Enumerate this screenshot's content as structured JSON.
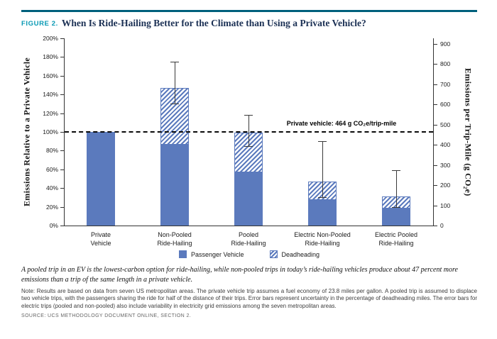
{
  "figure": {
    "label": "FIGURE 2.",
    "title": "When Is Ride-Hailing Better for the Climate than Using a Private Vehicle?"
  },
  "colors": {
    "bar": "#5b7abd",
    "accent_teal": "#0899b4",
    "title_navy": "#1b3054",
    "top_rule": "#00607c"
  },
  "chart_data": {
    "type": "bar",
    "stacked": true,
    "categories": [
      "Private Vehicle",
      "Non-Pooled Ride-Hailing",
      "Pooled Ride-Hailing",
      "Electric Non-Pooled Ride-Hailing",
      "Electric Pooled Ride-Hailing"
    ],
    "label_lines": [
      [
        "Private",
        "Vehicle"
      ],
      [
        "Non-Pooled",
        "Ride-Hailing"
      ],
      [
        "Pooled",
        "Ride-Hailing"
      ],
      [
        "Electric Non-Pooled",
        "Ride-Hailing"
      ],
      [
        "Electric Pooled",
        "Ride-Hailing"
      ]
    ],
    "series": [
      {
        "name": "Passenger Vehicle",
        "values": [
          100,
          86,
          57,
          27,
          18
        ]
      },
      {
        "name": "Deadheading",
        "values": [
          0,
          61,
          42,
          20,
          13
        ]
      }
    ],
    "totals_percent": [
      100,
      147,
      99,
      47,
      31
    ],
    "error_bars": [
      null,
      {
        "low": 130,
        "high": 175
      },
      {
        "low": 85,
        "high": 118
      },
      {
        "low": 30,
        "high": 90
      },
      {
        "low": 20,
        "high": 59
      }
    ],
    "ylabel_left": "Emissions Relative to a Private Vehicle",
    "ylabel_right": "Emissions per Trip-Mile (g CO₂e)",
    "ylim_left": [
      0,
      200
    ],
    "y_left_tick_step": 20,
    "y_left_tick_suffix": "%",
    "y_right_ticks": [
      0,
      100,
      200,
      300,
      400,
      500,
      600,
      700,
      800,
      900
    ],
    "reference_line": {
      "percent": 100,
      "grams_per_trip_mile": 464,
      "label": "Private vehicle: 464 g CO₂e/trip-mile"
    },
    "grid": false,
    "legend_position": "bottom"
  },
  "legend": [
    {
      "label": "Passenger Vehicle",
      "style": "solid"
    },
    {
      "label": "Deadheading",
      "style": "hatched"
    }
  ],
  "caption": "A pooled trip in an EV is the lowest-carbon option for ride-hailing, while non-pooled trips in today’s ride-hailing vehicles produce about 47 percent more emissions than a trip of the same length in a private vehicle.",
  "note": "Note: Results are based on data from seven US metropolitan areas. The private vehicle trip assumes a fuel economy of 23.8 miles per gallon. A pooled trip is assumed to displace two vehicle trips, with the passengers sharing the ride for half of the distance of their trips. Error bars represent uncertainty in the percentage of deadheading miles. The error bars for electric trips (pooled and non-pooled) also include variability in electricity grid emissions among the seven metropolitan areas.",
  "source": "SOURCE: UCS METHODOLOGY DOCUMENT ONLINE, SECTION 2."
}
